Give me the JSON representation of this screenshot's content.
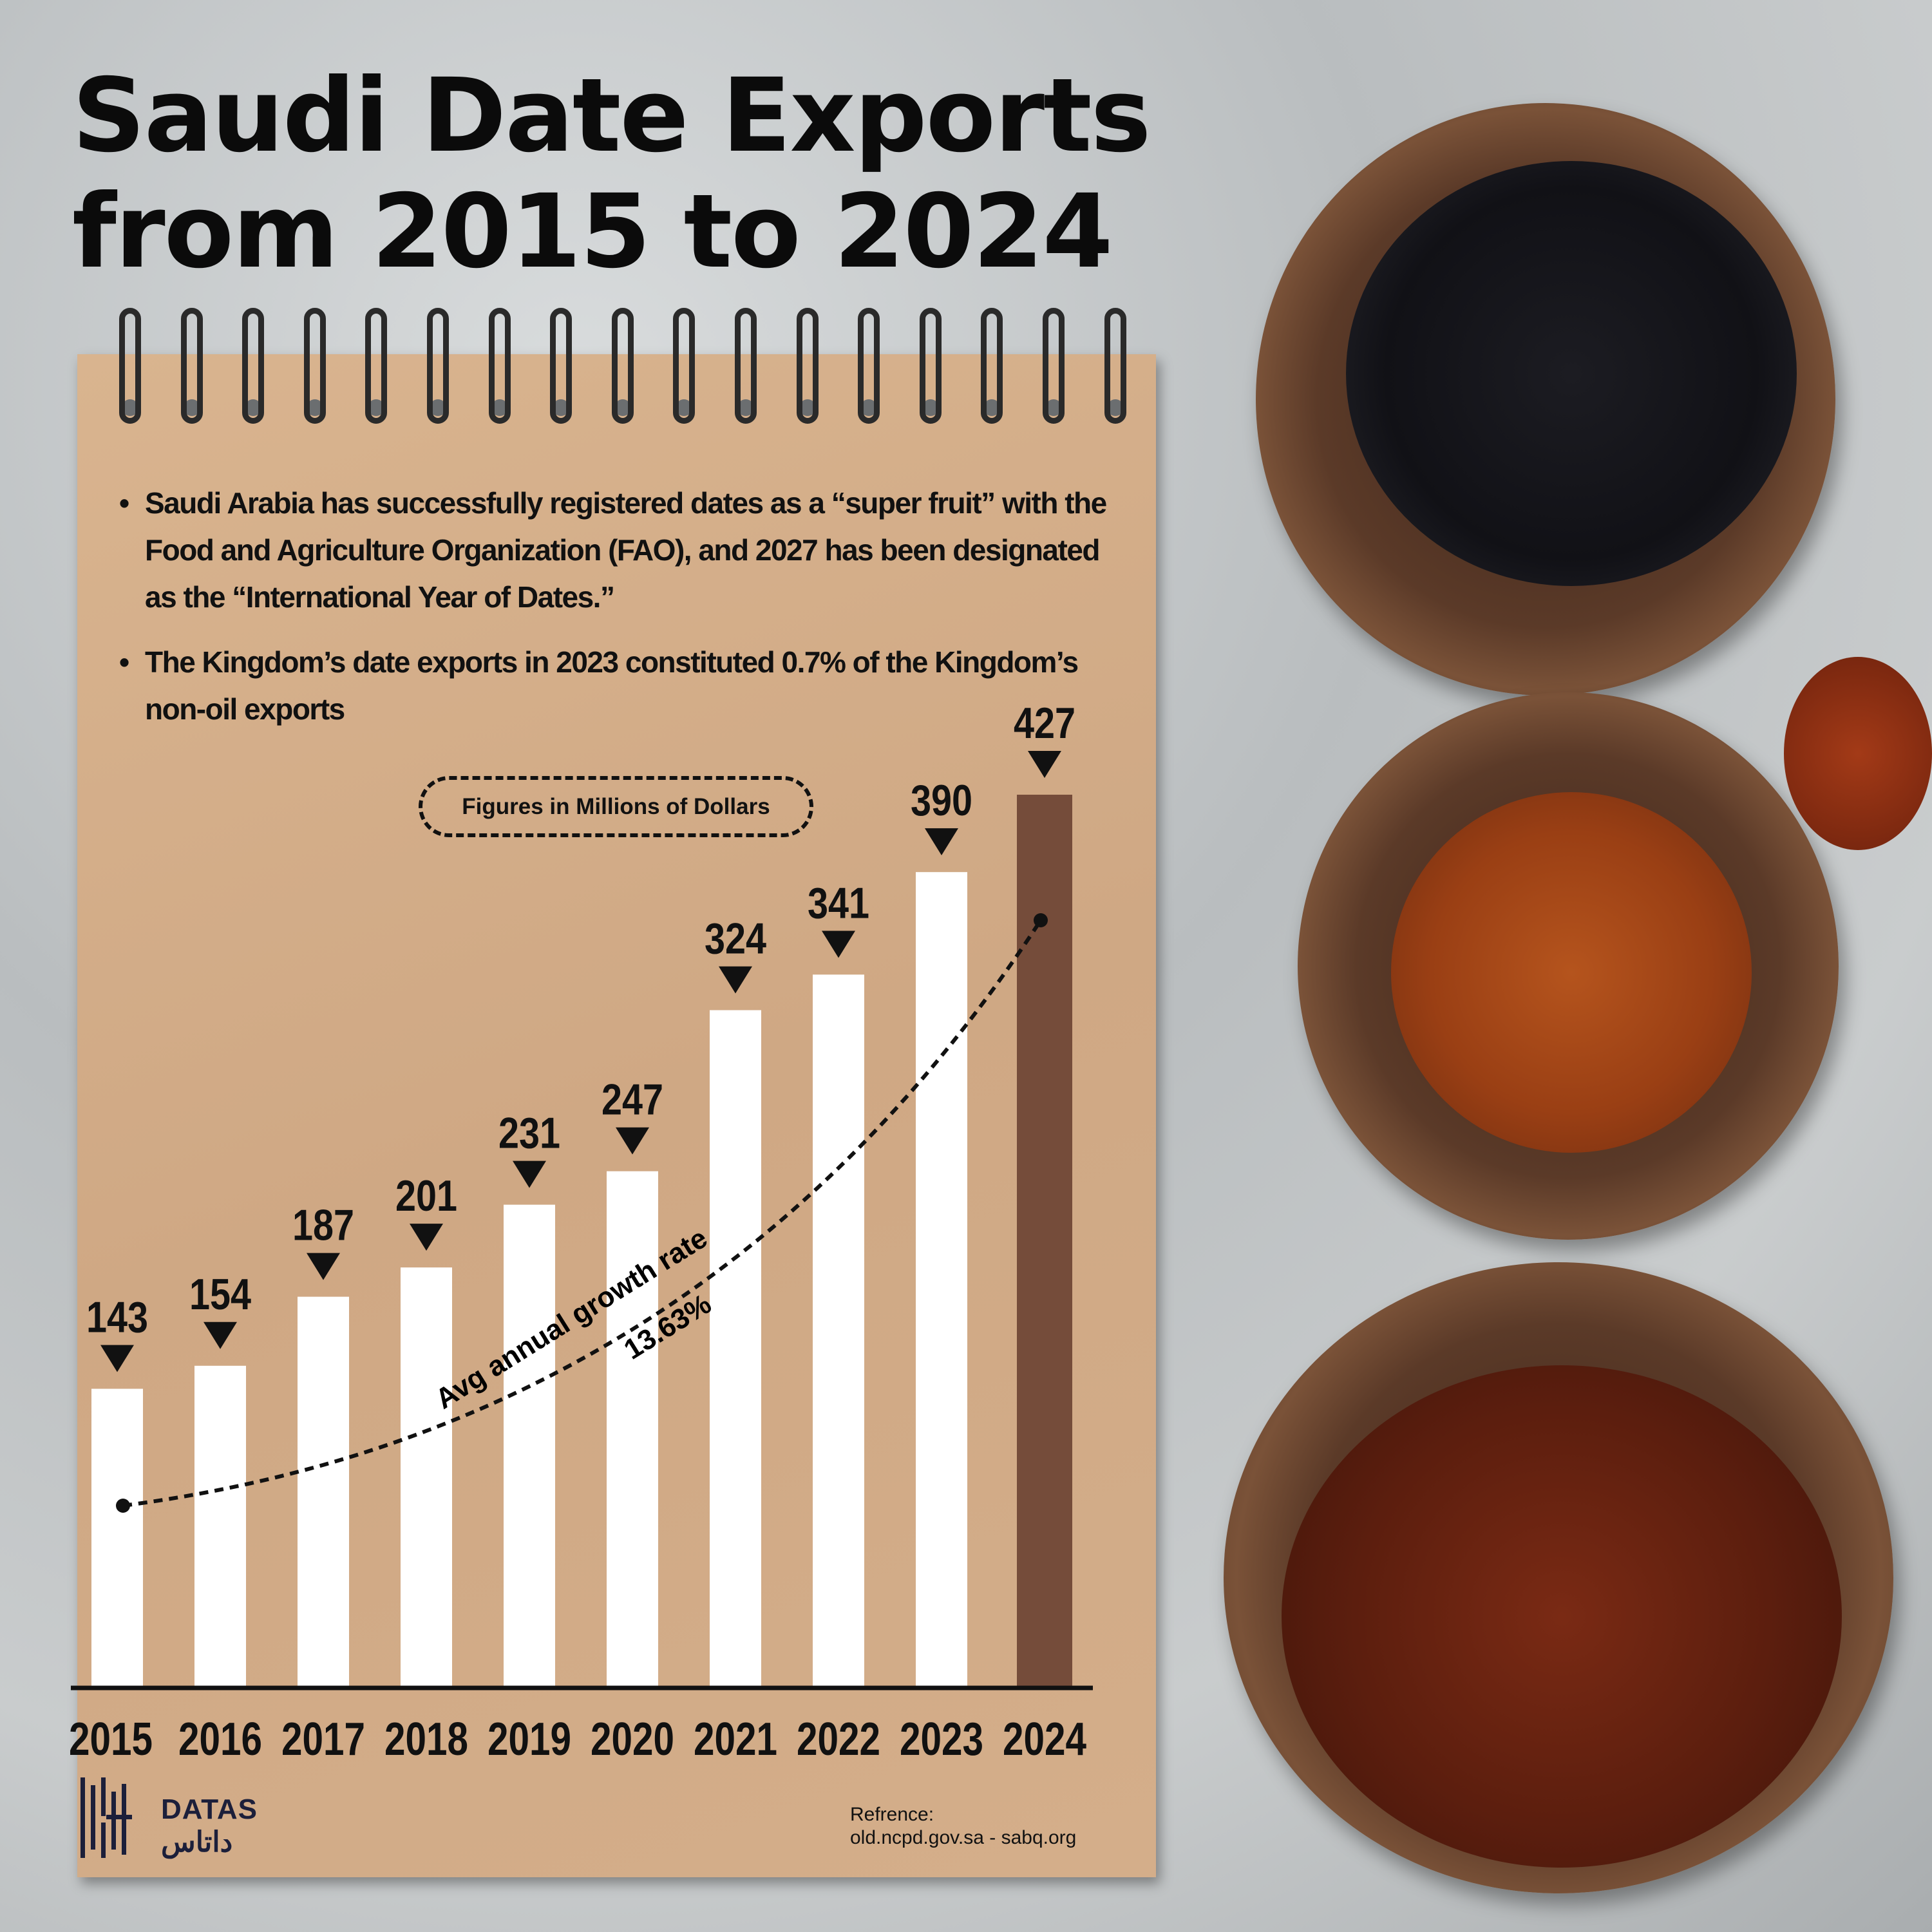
{
  "title_line1": "Saudi Date Exports",
  "title_line2": "from 2015 to 2024",
  "bullets": [
    "Saudi Arabia has successfully registered dates as a “super fruit” with the Food and Agriculture Organization (FAO), and 2027 has been designated as the “International Year of Dates.”",
    "The Kingdom’s date exports in 2023 constituted 0.7% of the Kingdom’s non-oil exports"
  ],
  "unit_note": "Figures in Millions of Dollars",
  "chart_data": {
    "type": "bar",
    "categories": [
      "2015",
      "2016",
      "2017",
      "2018",
      "2019",
      "2020",
      "2021",
      "2022",
      "2023",
      "2024"
    ],
    "values": [
      143,
      154,
      187,
      201,
      231,
      247,
      324,
      341,
      390,
      427
    ],
    "ylim": [
      0,
      427
    ],
    "grid": false,
    "bar_color": "#ffffff",
    "highlight_color": "#754c3a",
    "highlight_category": "2024",
    "annotation": {
      "line1": "Avg annual growth rate",
      "line2": "13.63%"
    }
  },
  "brand": {
    "latin": "DATAS",
    "arabic": "داتاس"
  },
  "reference": {
    "label": "Refrence:",
    "sources": "old.ncpd.gov.sa - sabq.org"
  }
}
